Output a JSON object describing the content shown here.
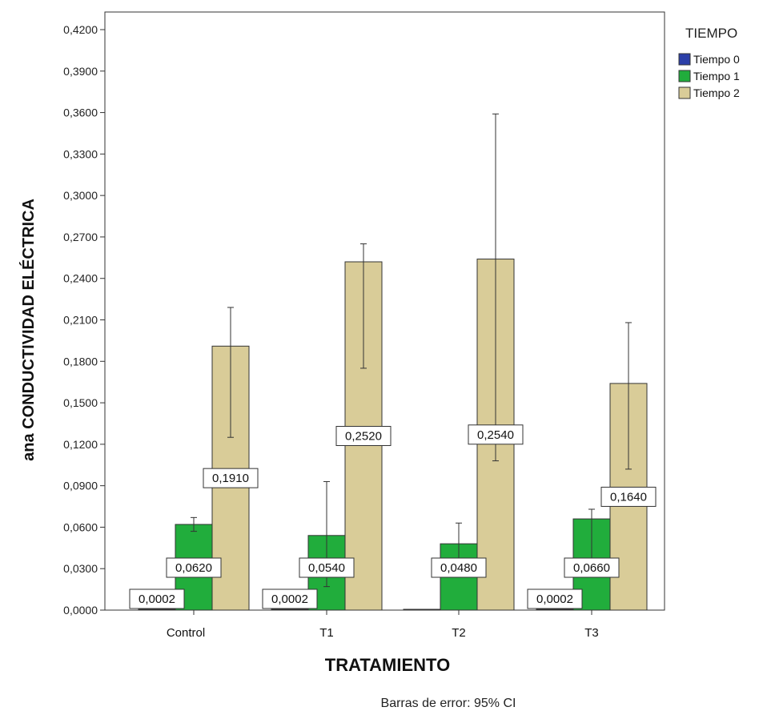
{
  "chart_data": {
    "type": "bar",
    "xlabel": "TRATAMIENTO",
    "ylabel": "ana CONDUCTIVIDAD ELÉCTRICA",
    "categories": [
      "Control",
      "T1",
      "T2",
      "T3"
    ],
    "ylim": [
      0,
      0.42
    ],
    "yticks": [
      "0,0000",
      "0,0300",
      "0,0600",
      "0,0900",
      "0,1200",
      "0,1500",
      "0,1800",
      "0,2100",
      "0,2400",
      "0,2700",
      "0,3000",
      "0,3300",
      "0,3600",
      "0,3900",
      "0,4200"
    ],
    "legend": {
      "title": "TIEMPO",
      "placement": "right"
    },
    "grid": false,
    "series": [
      {
        "name": "Tiempo 0",
        "color": "#2b3fa8",
        "values": [
          0.0002,
          0.0002,
          0.0,
          0.0002
        ],
        "labels": [
          "0,0002",
          "0,0002",
          "",
          "0,0002"
        ],
        "error": [
          null,
          null,
          null,
          null
        ]
      },
      {
        "name": "Tiempo 1",
        "color": "#21ad3c",
        "values": [
          0.062,
          0.054,
          0.048,
          0.066
        ],
        "labels": [
          "0,0620",
          "0,0540",
          "0,0480",
          "0,0660"
        ],
        "error": [
          [
            0.057,
            0.067
          ],
          [
            0.017,
            0.093
          ],
          [
            0.036,
            0.063
          ],
          [
            0.033,
            0.073
          ]
        ]
      },
      {
        "name": "Tiempo 2",
        "color": "#d9cc98",
        "values": [
          0.191,
          0.252,
          0.254,
          0.164
        ],
        "labels": [
          "0,1910",
          "0,2520",
          "0,2540",
          "0,1640"
        ],
        "error": [
          [
            0.125,
            0.219
          ],
          [
            0.175,
            0.265
          ],
          [
            0.108,
            0.359
          ],
          [
            0.102,
            0.208
          ]
        ]
      }
    ],
    "footnote": "Barras de error: 95% CI"
  }
}
